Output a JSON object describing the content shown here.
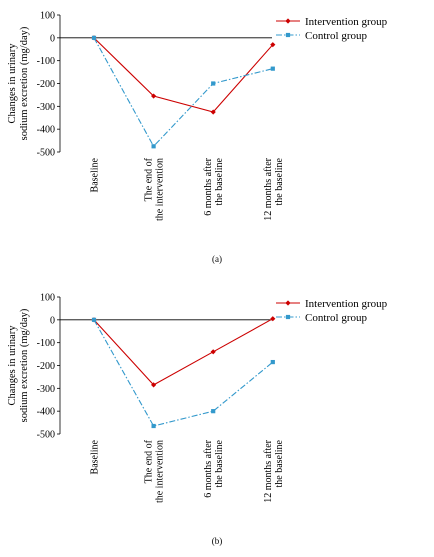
{
  "figure": {
    "panel_a_label": "(a)",
    "panel_b_label": "(b)"
  },
  "chart_data": [
    {
      "type": "line",
      "title": "",
      "ylabel_line1": "Changes in  urinary",
      "ylabel_line2": "sodium excretion (mg/day)",
      "xlabel": "",
      "ylim": [
        -500,
        100
      ],
      "yticks": [
        100,
        0,
        -100,
        -200,
        -300,
        -400,
        -500
      ],
      "categories": [
        [
          "Baseline"
        ],
        [
          "The end of",
          "the intervention"
        ],
        [
          "6 months after",
          "the baseline"
        ],
        [
          "12 months after",
          "the baseline"
        ]
      ],
      "legend_position": "right",
      "grid": false,
      "series": [
        {
          "name": "Intervention group",
          "values": [
            0,
            -255,
            -325,
            -30
          ],
          "color": "#cc0000",
          "marker": "diamond",
          "line": "solid"
        },
        {
          "name": "Control group",
          "values": [
            0,
            -475,
            -200,
            -135
          ],
          "color": "#3399cc",
          "marker": "square",
          "line": "dashdot"
        }
      ]
    },
    {
      "type": "line",
      "title": "",
      "ylabel_line1": "Changes in  urinary",
      "ylabel_line2": "sodium excretion (mg/day)",
      "xlabel": "",
      "ylim": [
        -500,
        100
      ],
      "yticks": [
        100,
        0,
        -100,
        -200,
        -300,
        -400,
        -500
      ],
      "categories": [
        [
          "Baseline"
        ],
        [
          "The end of",
          "the intervention"
        ],
        [
          "6 months after",
          "the baseline"
        ],
        [
          "12 months after",
          "the baseline"
        ]
      ],
      "legend_position": "right",
      "grid": false,
      "series": [
        {
          "name": "Intervention group",
          "values": [
            0,
            -285,
            -140,
            5
          ],
          "color": "#cc0000",
          "marker": "diamond",
          "line": "solid"
        },
        {
          "name": "Control group",
          "values": [
            0,
            -465,
            -400,
            -185
          ],
          "color": "#3399cc",
          "marker": "square",
          "line": "dashdot"
        }
      ]
    }
  ]
}
